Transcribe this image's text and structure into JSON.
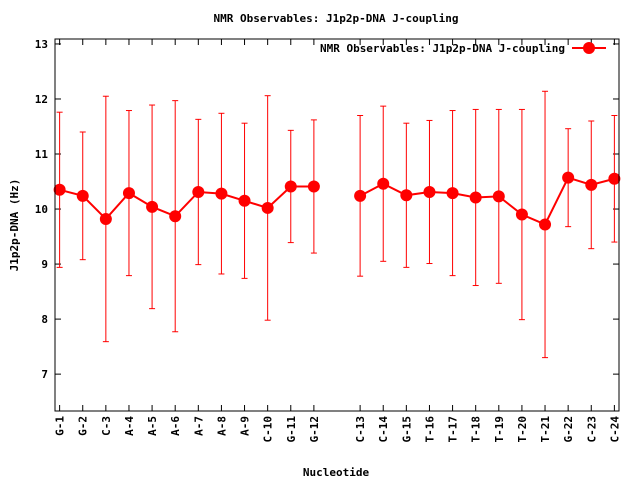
{
  "chart_data": {
    "type": "line",
    "title": "NMR Observables: J1p2p-DNA J-coupling",
    "xlabel": "Nucleotide",
    "ylabel": "J1p2p-DNA (Hz)",
    "ylim": [
      6.33,
      13.09
    ],
    "xlim": [
      0.8,
      25.2
    ],
    "yticks": [
      7,
      8,
      9,
      10,
      11,
      12,
      13
    ],
    "grid": false,
    "legend": {
      "placement": "top-right",
      "entries": [
        "NMR Observables: J1p2p-DNA J-coupling"
      ]
    },
    "series": [
      {
        "name": "NMR Observables: J1p2p-DNA J-coupling",
        "color": "#ff0000",
        "points": [
          {
            "x": 1,
            "label": "G-1",
            "y": 10.35,
            "err": 1.41
          },
          {
            "x": 2,
            "label": "G-2",
            "y": 10.24,
            "err": 1.16
          },
          {
            "x": 3,
            "label": "C-3",
            "y": 9.82,
            "err": 2.23
          },
          {
            "x": 4,
            "label": "A-4",
            "y": 10.29,
            "err": 1.5
          },
          {
            "x": 5,
            "label": "A-5",
            "y": 10.04,
            "err": 1.85
          },
          {
            "x": 6,
            "label": "A-6",
            "y": 9.87,
            "err": 2.1
          },
          {
            "x": 7,
            "label": "A-7",
            "y": 10.31,
            "err": 1.32
          },
          {
            "x": 8,
            "label": "A-8",
            "y": 10.28,
            "err": 1.46
          },
          {
            "x": 9,
            "label": "A-9",
            "y": 10.15,
            "err": 1.41
          },
          {
            "x": 10,
            "label": "C-10",
            "y": 10.02,
            "err": 2.04
          },
          {
            "x": 11,
            "label": "G-11",
            "y": 10.41,
            "err": 1.02
          },
          {
            "x": 12,
            "label": "G-12",
            "y": 10.41,
            "err": 1.21
          },
          {
            "x": 14,
            "label": "C-13",
            "y": 10.24,
            "err": 1.46
          },
          {
            "x": 15,
            "label": "C-14",
            "y": 10.46,
            "err": 1.41
          },
          {
            "x": 16,
            "label": "G-15",
            "y": 10.25,
            "err": 1.31
          },
          {
            "x": 17,
            "label": "T-16",
            "y": 10.31,
            "err": 1.3
          },
          {
            "x": 18,
            "label": "T-17",
            "y": 10.29,
            "err": 1.5
          },
          {
            "x": 19,
            "label": "T-18",
            "y": 10.21,
            "err": 1.6
          },
          {
            "x": 20,
            "label": "T-19",
            "y": 10.23,
            "err": 1.58
          },
          {
            "x": 21,
            "label": "T-20",
            "y": 9.9,
            "err": 1.91
          },
          {
            "x": 22,
            "label": "T-21",
            "y": 9.72,
            "err": 2.42
          },
          {
            "x": 23,
            "label": "G-22",
            "y": 10.57,
            "err": 0.89
          },
          {
            "x": 24,
            "label": "C-23",
            "y": 10.44,
            "err": 1.16
          },
          {
            "x": 25,
            "label": "C-24",
            "y": 10.55,
            "err": 1.15
          }
        ]
      }
    ]
  }
}
